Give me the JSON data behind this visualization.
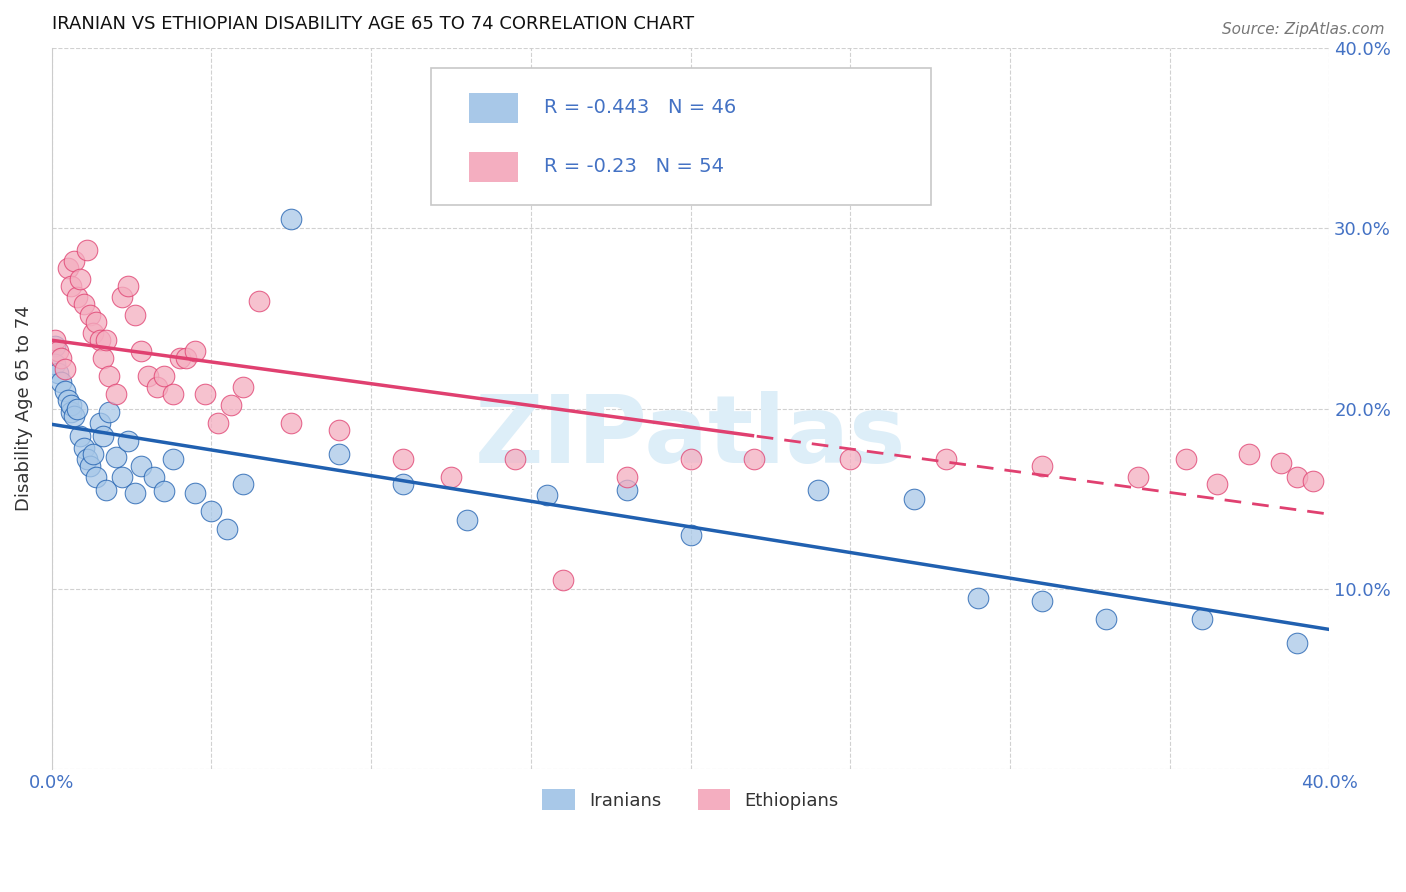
{
  "title": "IRANIAN VS ETHIOPIAN DISABILITY AGE 65 TO 74 CORRELATION CHART",
  "source": "Source: ZipAtlas.com",
  "ylabel": "Disability Age 65 to 74",
  "xlim": [
    0.0,
    0.4
  ],
  "ylim": [
    0.0,
    0.4
  ],
  "iranian_R": -0.443,
  "iranian_N": 46,
  "ethiopian_R": -0.23,
  "ethiopian_N": 54,
  "iranian_color": "#a8c8e8",
  "ethiopian_color": "#f4aec0",
  "iranian_line_color": "#2060b0",
  "ethiopian_line_color": "#e04070",
  "grid_color": "#cccccc",
  "title_color": "#111111",
  "tick_label_color": "#4472c4",
  "watermark_text_color": "#ddeef8",
  "background_color": "#ffffff",
  "iranians_x": [
    0.001,
    0.001,
    0.002,
    0.003,
    0.004,
    0.005,
    0.006,
    0.006,
    0.007,
    0.008,
    0.009,
    0.01,
    0.011,
    0.012,
    0.013,
    0.014,
    0.015,
    0.016,
    0.017,
    0.018,
    0.02,
    0.022,
    0.024,
    0.026,
    0.028,
    0.032,
    0.035,
    0.038,
    0.045,
    0.05,
    0.055,
    0.06,
    0.075,
    0.09,
    0.11,
    0.13,
    0.155,
    0.18,
    0.2,
    0.24,
    0.27,
    0.29,
    0.31,
    0.33,
    0.36,
    0.39
  ],
  "iranians_y": [
    0.235,
    0.225,
    0.22,
    0.215,
    0.21,
    0.205,
    0.198,
    0.202,
    0.196,
    0.2,
    0.185,
    0.178,
    0.172,
    0.168,
    0.175,
    0.162,
    0.192,
    0.185,
    0.155,
    0.198,
    0.173,
    0.162,
    0.182,
    0.153,
    0.168,
    0.162,
    0.154,
    0.172,
    0.153,
    0.143,
    0.133,
    0.158,
    0.305,
    0.175,
    0.158,
    0.138,
    0.152,
    0.155,
    0.13,
    0.155,
    0.15,
    0.095,
    0.093,
    0.083,
    0.083,
    0.07
  ],
  "ethiopians_x": [
    0.001,
    0.002,
    0.003,
    0.004,
    0.005,
    0.006,
    0.007,
    0.008,
    0.009,
    0.01,
    0.011,
    0.012,
    0.013,
    0.014,
    0.015,
    0.016,
    0.017,
    0.018,
    0.02,
    0.022,
    0.024,
    0.026,
    0.028,
    0.03,
    0.033,
    0.035,
    0.038,
    0.04,
    0.042,
    0.045,
    0.048,
    0.052,
    0.056,
    0.06,
    0.065,
    0.075,
    0.09,
    0.11,
    0.125,
    0.145,
    0.16,
    0.18,
    0.2,
    0.22,
    0.25,
    0.28,
    0.31,
    0.34,
    0.355,
    0.365,
    0.375,
    0.385,
    0.39,
    0.395
  ],
  "ethiopians_y": [
    0.238,
    0.232,
    0.228,
    0.222,
    0.278,
    0.268,
    0.282,
    0.262,
    0.272,
    0.258,
    0.288,
    0.252,
    0.242,
    0.248,
    0.238,
    0.228,
    0.238,
    0.218,
    0.208,
    0.262,
    0.268,
    0.252,
    0.232,
    0.218,
    0.212,
    0.218,
    0.208,
    0.228,
    0.228,
    0.232,
    0.208,
    0.192,
    0.202,
    0.212,
    0.26,
    0.192,
    0.188,
    0.172,
    0.162,
    0.172,
    0.105,
    0.162,
    0.172,
    0.172,
    0.172,
    0.172,
    0.168,
    0.162,
    0.172,
    0.158,
    0.175,
    0.17,
    0.162,
    0.16
  ]
}
